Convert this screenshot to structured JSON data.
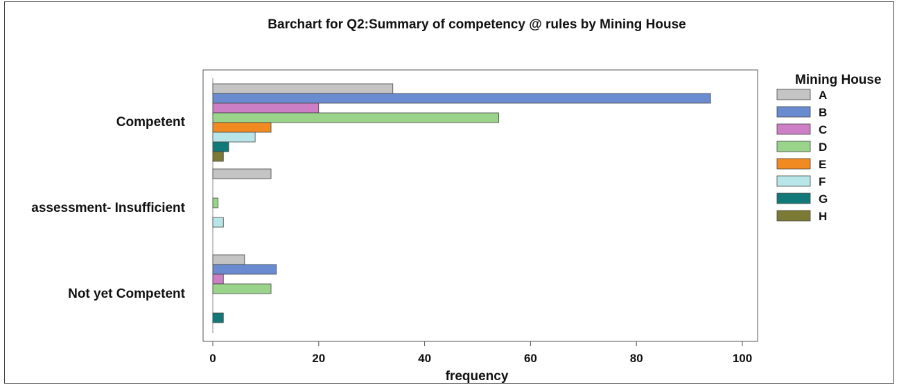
{
  "chart_data": {
    "type": "bar",
    "orientation": "horizontal",
    "title": "Barchart for Q2:Summary of competency @ rules by Mining House",
    "xlabel": "frequency",
    "ylabel": "",
    "xlim": [
      0,
      100
    ],
    "xticks": [
      "0",
      "20",
      "40",
      "60",
      "80",
      "100"
    ],
    "categories": [
      "Competent",
      "assessment- Insufficient",
      "Not yet Competent"
    ],
    "legend_title": "Mining House",
    "legend_position": "right",
    "series": [
      {
        "name": "A",
        "color": "#c4c4c4",
        "values": [
          34,
          11,
          6
        ]
      },
      {
        "name": "B",
        "color": "#6b8bd0",
        "values": [
          94,
          0,
          12
        ]
      },
      {
        "name": "C",
        "color": "#cc7fc4",
        "values": [
          20,
          0,
          2
        ]
      },
      {
        "name": "D",
        "color": "#99d48a",
        "values": [
          54,
          1,
          11
        ]
      },
      {
        "name": "E",
        "color": "#f28a22",
        "values": [
          11,
          0,
          0
        ]
      },
      {
        "name": "F",
        "color": "#b8e6e8",
        "values": [
          8,
          2,
          0
        ]
      },
      {
        "name": "G",
        "color": "#117a78",
        "values": [
          3,
          0,
          2
        ]
      },
      {
        "name": "H",
        "color": "#7d7a35",
        "values": [
          2,
          0,
          0
        ]
      }
    ]
  }
}
